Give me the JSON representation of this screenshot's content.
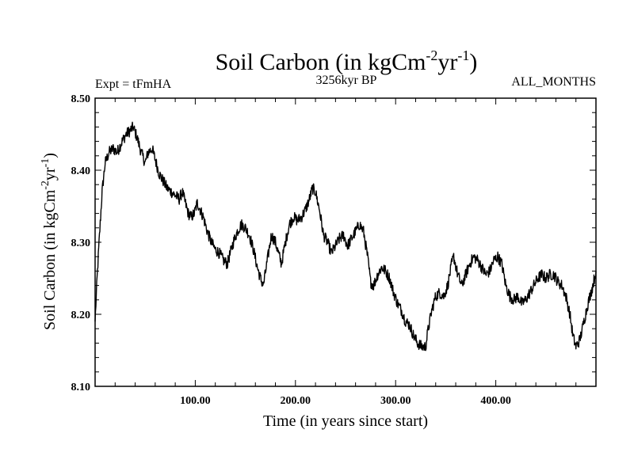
{
  "chart_data": {
    "type": "line",
    "title": {
      "main": "Soil Carbon (in kgCm",
      "exp1": "-2",
      "mid": "yr",
      "exp2": "-1",
      "end": ")"
    },
    "left_label": "Expt = tFmHA",
    "center_label": "3256kyr BP",
    "right_label": "ALL_MONTHS",
    "xlabel": "Time (in years since start)",
    "ylabel": {
      "main": "Soil Carbon (in kgCm",
      "exp1": "-2",
      "mid": "yr",
      "exp2": "-1",
      "end": ")"
    },
    "xlim": [
      0,
      500
    ],
    "ylim": [
      8.1,
      8.5
    ],
    "x_ticks": [
      {
        "value": 100,
        "label": "100.00"
      },
      {
        "value": 200,
        "label": "200.00"
      },
      {
        "value": 300,
        "label": "300.00"
      },
      {
        "value": 400,
        "label": "400.00"
      }
    ],
    "y_ticks": [
      {
        "value": 8.1,
        "label": "8.10"
      },
      {
        "value": 8.2,
        "label": "8.20"
      },
      {
        "value": 8.3,
        "label": "8.30"
      },
      {
        "value": 8.4,
        "label": "8.40"
      },
      {
        "value": 8.5,
        "label": "8.50"
      }
    ],
    "noise_amplitude": 0.008,
    "series": [
      {
        "name": "Soil Carbon",
        "x": [
          0,
          2,
          4,
          7,
          10,
          14,
          18,
          22,
          27,
          31,
          35,
          38,
          42,
          46,
          50,
          53,
          57,
          60,
          64,
          68,
          72,
          76,
          80,
          84,
          87,
          90,
          93,
          96,
          99,
          102,
          105,
          108,
          112,
          116,
          120,
          124,
          128,
          132,
          135,
          138,
          142,
          146,
          150,
          154,
          158,
          162,
          165,
          168,
          172,
          176,
          180,
          183,
          186,
          190,
          194,
          198,
          202,
          206,
          210,
          214,
          217,
          220,
          224,
          228,
          232,
          236,
          240,
          244,
          248,
          252,
          256,
          260,
          264,
          268,
          272,
          275,
          278,
          282,
          286,
          290,
          294,
          298,
          302,
          306,
          310,
          314,
          318,
          322,
          326,
          330,
          332,
          336,
          340,
          344,
          348,
          352,
          356,
          358,
          362,
          366,
          370,
          374,
          378,
          382,
          386,
          390,
          394,
          398,
          402,
          406,
          410,
          414,
          418,
          422,
          426,
          430,
          434,
          438,
          442,
          446,
          450,
          454,
          458,
          462,
          466,
          470,
          474,
          477,
          480,
          484,
          488,
          492,
          496,
          500
        ],
        "y": [
          8.19,
          8.25,
          8.3,
          8.37,
          8.41,
          8.425,
          8.43,
          8.425,
          8.44,
          8.45,
          8.455,
          8.46,
          8.445,
          8.425,
          8.41,
          8.425,
          8.43,
          8.415,
          8.395,
          8.385,
          8.375,
          8.37,
          8.365,
          8.36,
          8.37,
          8.355,
          8.34,
          8.335,
          8.34,
          8.355,
          8.345,
          8.335,
          8.315,
          8.3,
          8.29,
          8.285,
          8.275,
          8.27,
          8.285,
          8.3,
          8.315,
          8.325,
          8.32,
          8.31,
          8.29,
          8.265,
          8.25,
          8.24,
          8.275,
          8.31,
          8.3,
          8.285,
          8.27,
          8.3,
          8.325,
          8.335,
          8.33,
          8.335,
          8.345,
          8.36,
          8.375,
          8.37,
          8.345,
          8.31,
          8.3,
          8.285,
          8.295,
          8.305,
          8.31,
          8.295,
          8.305,
          8.315,
          8.325,
          8.315,
          8.28,
          8.245,
          8.24,
          8.255,
          8.265,
          8.26,
          8.25,
          8.23,
          8.215,
          8.205,
          8.19,
          8.185,
          8.17,
          8.16,
          8.155,
          8.155,
          8.175,
          8.205,
          8.225,
          8.23,
          8.225,
          8.24,
          8.27,
          8.28,
          8.255,
          8.24,
          8.255,
          8.27,
          8.28,
          8.275,
          8.265,
          8.255,
          8.26,
          8.275,
          8.28,
          8.27,
          8.24,
          8.225,
          8.22,
          8.225,
          8.215,
          8.22,
          8.23,
          8.24,
          8.25,
          8.255,
          8.25,
          8.255,
          8.255,
          8.245,
          8.24,
          8.225,
          8.2,
          8.17,
          8.155,
          8.165,
          8.19,
          8.215,
          8.235,
          8.26
        ]
      }
    ]
  }
}
